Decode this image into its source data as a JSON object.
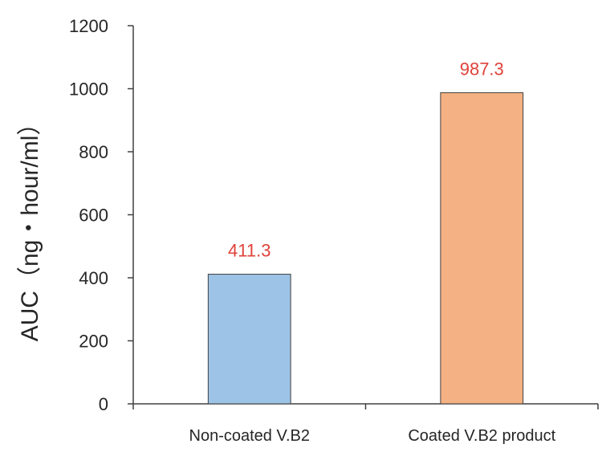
{
  "chart_data": {
    "type": "bar",
    "title": "",
    "xlabel": "",
    "ylabel": "AUC（ng・hour/ml）",
    "categories": [
      "Non-coated V.B2",
      "Coated V.B2 product"
    ],
    "values": [
      411.3,
      987.3
    ],
    "data_labels": [
      "411.3",
      "987.3"
    ],
    "bar_colors": [
      "#9dc3e6",
      "#f4b183"
    ],
    "label_color": "#e0423a",
    "ylim": [
      0,
      1200
    ],
    "yticks": [
      0,
      200,
      400,
      600,
      800,
      1000,
      1200
    ],
    "ytick_labels": [
      "0",
      "200",
      "400",
      "600",
      "800",
      "1000",
      "1200"
    ],
    "grid": false,
    "legend": "none"
  }
}
